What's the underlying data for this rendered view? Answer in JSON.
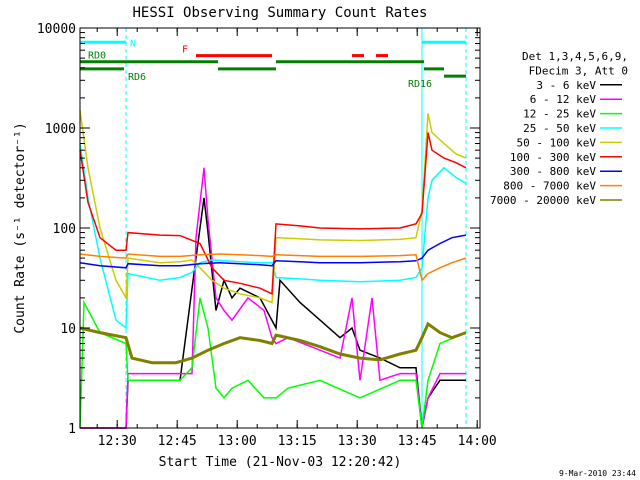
{
  "chart_data": {
    "type": "line",
    "title": "HESSI Observing Summary Count Rates",
    "xlabel": "Start Time (21-Nov-03 12:20:42)",
    "ylabel": "Count Rate (s⁻¹ detector⁻¹)",
    "x_unit": "minutes since 12:20:42",
    "xlim": [
      0,
      100
    ],
    "ylim": [
      1,
      10000
    ],
    "yscale": "log",
    "grid": false,
    "legend_position": "right",
    "legend_header": [
      "Det 1,3,4,5,6,9,",
      "FDecim 3, Att 0"
    ],
    "footer_date": "9-Mar-2010 23:44",
    "x_ticks": [
      {
        "t": 9.3,
        "label": "12:30"
      },
      {
        "t": 24.3,
        "label": "12:45"
      },
      {
        "t": 39.3,
        "label": "13:00"
      },
      {
        "t": 54.3,
        "label": "13:15"
      },
      {
        "t": 69.3,
        "label": "13:30"
      },
      {
        "t": 84.3,
        "label": "13:45"
      },
      {
        "t": 99.3,
        "label": "14:00"
      }
    ],
    "y_ticks": [
      {
        "v": 1,
        "label": "1"
      },
      {
        "v": 10,
        "label": "10"
      },
      {
        "v": 100,
        "label": "100"
      },
      {
        "v": 1000,
        "label": "1000"
      },
      {
        "v": 10000,
        "label": "10000"
      }
    ],
    "night_boundaries": [
      0,
      11.5,
      85.5,
      96.5
    ],
    "flags": [
      {
        "label": "N",
        "color": "#00ffff",
        "level": 7200,
        "segments": [
          [
            0,
            11.5
          ],
          [
            85.5,
            96.5
          ]
        ]
      },
      {
        "label": "F",
        "color": "#ff0000",
        "level": 5300,
        "segments": [
          [
            29,
            48
          ],
          [
            68,
            71
          ],
          [
            74,
            77
          ]
        ]
      },
      {
        "label": "RD0",
        "color": "#008000",
        "level": 4600,
        "segments": [
          [
            0,
            34.5
          ],
          [
            49,
            86
          ]
        ]
      },
      {
        "label": "RD6",
        "color": "#008000",
        "level": 3900,
        "segments": [
          [
            0,
            11
          ],
          [
            34.5,
            49
          ],
          [
            86,
            91
          ]
        ]
      },
      {
        "label": "RD16",
        "color": "#008000",
        "level": 3300,
        "segments": [
          [
            91,
            96.5
          ]
        ]
      }
    ],
    "series": [
      {
        "name": "3 - 6 keV",
        "color": "#000000",
        "points": [
          [
            0,
            1
          ],
          [
            11.5,
            1
          ],
          [
            12,
            3
          ],
          [
            17,
            3
          ],
          [
            25,
            3
          ],
          [
            29,
            50
          ],
          [
            31,
            200
          ],
          [
            32,
            90
          ],
          [
            34,
            15
          ],
          [
            36,
            30
          ],
          [
            38,
            20
          ],
          [
            40,
            25
          ],
          [
            45,
            20
          ],
          [
            49,
            10
          ],
          [
            50,
            30
          ],
          [
            55,
            18
          ],
          [
            60,
            12
          ],
          [
            65,
            8
          ],
          [
            68,
            10
          ],
          [
            70,
            6
          ],
          [
            75,
            5
          ],
          [
            80,
            4
          ],
          [
            84,
            4
          ],
          [
            85.5,
            1
          ],
          [
            87,
            2
          ],
          [
            90,
            3
          ],
          [
            96.5,
            3
          ]
        ]
      },
      {
        "name": "6 - 12 keV",
        "color": "#ff00ff",
        "points": [
          [
            0,
            1
          ],
          [
            11.5,
            1
          ],
          [
            12,
            3.5
          ],
          [
            16,
            3.5
          ],
          [
            20,
            3.5
          ],
          [
            28,
            3.5
          ],
          [
            29,
            80
          ],
          [
            31,
            400
          ],
          [
            32,
            120
          ],
          [
            34,
            20
          ],
          [
            36,
            15
          ],
          [
            38,
            12
          ],
          [
            42,
            20
          ],
          [
            46,
            15
          ],
          [
            48,
            8
          ],
          [
            49,
            7
          ],
          [
            52,
            8
          ],
          [
            60,
            6
          ],
          [
            65,
            5
          ],
          [
            68,
            20
          ],
          [
            70,
            3
          ],
          [
            73,
            20
          ],
          [
            75,
            3
          ],
          [
            80,
            3.5
          ],
          [
            84,
            3.5
          ],
          [
            85.5,
            1
          ],
          [
            87,
            2
          ],
          [
            90,
            3.5
          ],
          [
            96.5,
            3.5
          ]
        ]
      },
      {
        "name": "12 - 25 keV",
        "color": "#00ff00",
        "points": [
          [
            0,
            1
          ],
          [
            1,
            18
          ],
          [
            5,
            9
          ],
          [
            11.5,
            7
          ],
          [
            12,
            3
          ],
          [
            16,
            3
          ],
          [
            20,
            3
          ],
          [
            25,
            3
          ],
          [
            28,
            4
          ],
          [
            30,
            20
          ],
          [
            32,
            10
          ],
          [
            34,
            2.5
          ],
          [
            36,
            2
          ],
          [
            38,
            2.5
          ],
          [
            42,
            3
          ],
          [
            46,
            2
          ],
          [
            48,
            2
          ],
          [
            49,
            2
          ],
          [
            52,
            2.5
          ],
          [
            60,
            3
          ],
          [
            70,
            2
          ],
          [
            80,
            3
          ],
          [
            84,
            3
          ],
          [
            85.5,
            1
          ],
          [
            87,
            3
          ],
          [
            90,
            7
          ],
          [
            96.5,
            9
          ]
        ]
      },
      {
        "name": "25 - 50 keV",
        "color": "#00ffff",
        "points": [
          [
            0,
            700
          ],
          [
            2,
            200
          ],
          [
            5,
            50
          ],
          [
            9,
            12
          ],
          [
            11.5,
            10
          ],
          [
            12,
            35
          ],
          [
            20,
            30
          ],
          [
            25,
            32
          ],
          [
            28,
            36
          ],
          [
            30,
            45
          ],
          [
            33,
            48
          ],
          [
            40,
            46
          ],
          [
            45,
            45
          ],
          [
            48,
            45
          ],
          [
            49,
            32
          ],
          [
            55,
            31
          ],
          [
            60,
            30
          ],
          [
            70,
            29
          ],
          [
            80,
            30
          ],
          [
            84,
            32
          ],
          [
            85.5,
            40
          ],
          [
            87,
            200
          ],
          [
            88,
            300
          ],
          [
            91,
            400
          ],
          [
            94,
            320
          ],
          [
            96.5,
            280
          ]
        ]
      },
      {
        "name": "50 - 100 keV",
        "color": "#cccc00",
        "points": [
          [
            0,
            1500
          ],
          [
            2,
            400
          ],
          [
            5,
            100
          ],
          [
            9,
            30
          ],
          [
            11.5,
            20
          ],
          [
            12,
            50
          ],
          [
            20,
            45
          ],
          [
            25,
            46
          ],
          [
            28,
            48
          ],
          [
            30,
            40
          ],
          [
            33,
            30
          ],
          [
            36,
            25
          ],
          [
            40,
            22
          ],
          [
            45,
            20
          ],
          [
            48,
            18
          ],
          [
            49,
            80
          ],
          [
            55,
            78
          ],
          [
            60,
            76
          ],
          [
            70,
            75
          ],
          [
            80,
            77
          ],
          [
            84,
            80
          ],
          [
            85.5,
            150
          ],
          [
            87,
            1400
          ],
          [
            88,
            900
          ],
          [
            91,
            700
          ],
          [
            94,
            550
          ],
          [
            96.5,
            500
          ]
        ]
      },
      {
        "name": "100 - 300 keV",
        "color": "#ff0000",
        "points": [
          [
            0,
            600
          ],
          [
            2,
            180
          ],
          [
            5,
            80
          ],
          [
            9,
            60
          ],
          [
            11.5,
            60
          ],
          [
            12,
            90
          ],
          [
            20,
            85
          ],
          [
            25,
            84
          ],
          [
            30,
            70
          ],
          [
            33,
            40
          ],
          [
            36,
            30
          ],
          [
            40,
            28
          ],
          [
            45,
            25
          ],
          [
            48,
            22
          ],
          [
            49,
            110
          ],
          [
            55,
            105
          ],
          [
            60,
            100
          ],
          [
            70,
            98
          ],
          [
            80,
            100
          ],
          [
            84,
            110
          ],
          [
            85.5,
            140
          ],
          [
            87,
            900
          ],
          [
            88,
            600
          ],
          [
            91,
            500
          ],
          [
            94,
            450
          ],
          [
            96.5,
            400
          ]
        ]
      },
      {
        "name": "300 - 800 keV",
        "color": "#0000ff",
        "points": [
          [
            0,
            45
          ],
          [
            5,
            42
          ],
          [
            11.5,
            40
          ],
          [
            12,
            44
          ],
          [
            20,
            42
          ],
          [
            25,
            42
          ],
          [
            30,
            44
          ],
          [
            35,
            45
          ],
          [
            40,
            44
          ],
          [
            45,
            43
          ],
          [
            48,
            42
          ],
          [
            49,
            47
          ],
          [
            55,
            46
          ],
          [
            60,
            45
          ],
          [
            70,
            45
          ],
          [
            80,
            46
          ],
          [
            84,
            47
          ],
          [
            85.5,
            50
          ],
          [
            87,
            60
          ],
          [
            90,
            70
          ],
          [
            93,
            80
          ],
          [
            96.5,
            85
          ]
        ]
      },
      {
        "name": "800 - 7000 keV",
        "color": "#ff8000",
        "points": [
          [
            0,
            55
          ],
          [
            5,
            52
          ],
          [
            11.5,
            50
          ],
          [
            12,
            55
          ],
          [
            20,
            52
          ],
          [
            25,
            52
          ],
          [
            30,
            54
          ],
          [
            35,
            55
          ],
          [
            40,
            54
          ],
          [
            45,
            53
          ],
          [
            48,
            52
          ],
          [
            49,
            54
          ],
          [
            55,
            53
          ],
          [
            60,
            52
          ],
          [
            70,
            52
          ],
          [
            80,
            53
          ],
          [
            84,
            54
          ],
          [
            85.5,
            30
          ],
          [
            87,
            35
          ],
          [
            90,
            40
          ],
          [
            93,
            45
          ],
          [
            96.5,
            50
          ]
        ]
      },
      {
        "name": "7000 - 20000 keV",
        "color": "#808000",
        "points": [
          [
            0,
            10
          ],
          [
            5,
            9
          ],
          [
            11.5,
            8
          ],
          [
            13,
            5
          ],
          [
            18,
            4.5
          ],
          [
            24,
            4.5
          ],
          [
            28,
            5
          ],
          [
            32,
            6
          ],
          [
            36,
            7
          ],
          [
            40,
            8
          ],
          [
            45,
            7.5
          ],
          [
            48,
            7
          ],
          [
            49,
            8.5
          ],
          [
            55,
            7.5
          ],
          [
            60,
            6.5
          ],
          [
            65,
            5.5
          ],
          [
            70,
            5
          ],
          [
            75,
            4.8
          ],
          [
            80,
            5.5
          ],
          [
            84,
            6
          ],
          [
            85.5,
            8
          ],
          [
            87,
            11
          ],
          [
            90,
            9
          ],
          [
            93,
            8
          ],
          [
            96.5,
            9
          ]
        ]
      }
    ]
  }
}
